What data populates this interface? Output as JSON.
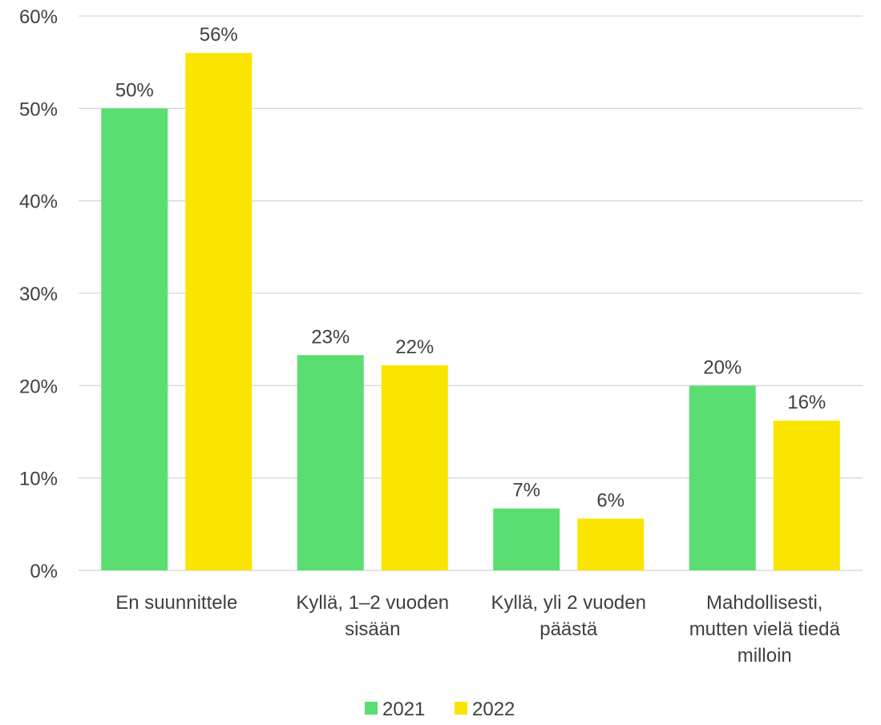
{
  "chart_data": {
    "type": "bar",
    "categories": [
      [
        "En suunnittele"
      ],
      [
        "Kyllä, 1–2 vuoden",
        "sisään"
      ],
      [
        "Kyllä, yli 2 vuoden",
        "päästä"
      ],
      [
        "Mahdollisesti,",
        "mutten vielä tiedä",
        "milloin"
      ]
    ],
    "series": [
      {
        "name": "2021",
        "color": "#5ade72",
        "values": [
          50,
          23.3,
          6.7,
          20
        ],
        "labels": [
          "50%",
          "23%",
          "7%",
          "20%"
        ]
      },
      {
        "name": "2022",
        "color": "#fae500",
        "values": [
          56,
          22.2,
          5.6,
          16.2
        ],
        "labels": [
          "56%",
          "22%",
          "6%",
          "16%"
        ]
      }
    ],
    "ylim": [
      0,
      60
    ],
    "yticks": [
      "0%",
      "10%",
      "20%",
      "30%",
      "40%",
      "50%",
      "60%"
    ],
    "ytick_values": [
      0,
      10,
      20,
      30,
      40,
      50,
      60
    ],
    "grid": true,
    "legend_position": "bottom"
  }
}
